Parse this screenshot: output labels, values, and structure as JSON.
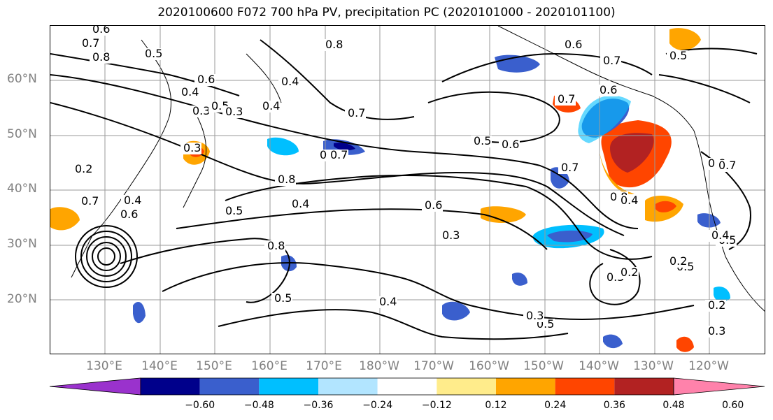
{
  "title": "2020100600 F072 700 hPa PV, precipitation PC (2020101000 - 2020101100)",
  "lat_labels": [
    "60°N",
    "50°N",
    "40°N",
    "30°N",
    "20°N"
  ],
  "lon_labels": [
    "130°E",
    "140°E",
    "150°E",
    "160°E",
    "170°E",
    "180°W",
    "170°W",
    "160°W",
    "150°W",
    "140°W",
    "130°W",
    "120°W"
  ],
  "colorbar": {
    "ticks": [
      "−0.60",
      "−0.48",
      "−0.36",
      "−0.24",
      "−0.12",
      "0.12",
      "0.24",
      "0.36",
      "0.48",
      "0.60"
    ],
    "colors": [
      "#9a32cd",
      "#00008b",
      "#3a5fcd",
      "#00bfff",
      "#b2e5ff",
      "#ffffff",
      "#ffec8b",
      "#ffa500",
      "#ff4500",
      "#b22222",
      "#ff82ab"
    ]
  },
  "contour_labels": [
    "0.6",
    "0.7",
    "0.8",
    "0.5",
    "0.6",
    "0.4",
    "0.3",
    "0.4",
    "0.8",
    "0.4",
    "0.7",
    "0.5",
    "0.6",
    "0.7",
    "0.6",
    "0.7",
    "0.6",
    "0.5",
    "0.7",
    "0.5",
    "0.8",
    "0.6",
    "0.4",
    "0.7",
    "0.8",
    "0.5",
    "0.3",
    "0.4",
    "0.5",
    "0.5",
    "0.2",
    "0.3",
    "0.5",
    "0.4",
    "0.3",
    "0.5",
    "0.2",
    "0.3",
    "0.5",
    "0.7",
    "0.8",
    "0.7",
    "0.2",
    "0.4",
    "0.6",
    "0.5",
    "0.3",
    "0.2",
    "0.8",
    "0.4"
  ]
}
